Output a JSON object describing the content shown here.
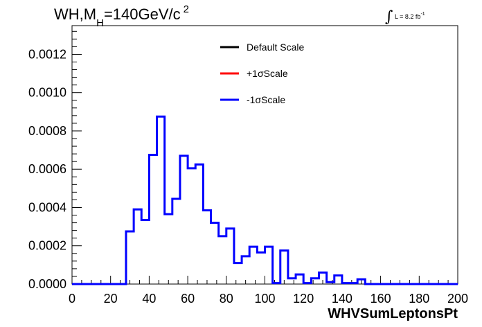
{
  "title": {
    "prefix": "WH,M",
    "sub": "H",
    "suffix": "=140GeV/c",
    "sup": "2"
  },
  "lumi": {
    "integral": "∫",
    "text": "L = 8.2 fb",
    "sup": "-1"
  },
  "chart_data": {
    "type": "line",
    "style": "step-histogram",
    "xlabel": "WHVSumLeptonsPt",
    "ylabel": "",
    "xlim": [
      0,
      200
    ],
    "ylim": [
      0,
      0.00135
    ],
    "x_ticks": [
      "0",
      "20",
      "40",
      "60",
      "80",
      "100",
      "120",
      "140",
      "160",
      "180",
      "200"
    ],
    "y_ticks": [
      "0.0000",
      "0.0002",
      "0.0004",
      "0.0006",
      "0.0008",
      "0.0010",
      "0.0012"
    ],
    "legend": {
      "placement": "top-center",
      "entries": [
        {
          "label": "Default Scale",
          "color": "#000000"
        },
        {
          "label": "+1σScale",
          "color": "#ff0000"
        },
        {
          "label": "-1σScale",
          "color": "#0000ff"
        }
      ]
    },
    "bin_width": 4,
    "bin_edges_start": 0,
    "series": [
      {
        "name": "-1σScale",
        "color": "#0000ff",
        "values": [
          0,
          0,
          0,
          0,
          0,
          0,
          0,
          0.000275,
          0.00039,
          0.000335,
          0.000675,
          0.000875,
          0.000365,
          0.000445,
          0.00067,
          0.000605,
          0.000625,
          0.000385,
          0.00032,
          0.00025,
          0.00029,
          0.00011,
          0.000145,
          0.000195,
          0.000165,
          0.000195,
          5e-06,
          0.000175,
          3e-05,
          5e-05,
          5e-06,
          3e-05,
          6e-05,
          1e-05,
          4.5e-05,
          5e-06,
          5e-06,
          2.5e-05,
          0,
          0,
          0,
          0,
          0,
          0,
          0,
          0,
          0,
          0,
          0,
          0
        ]
      }
    ]
  }
}
